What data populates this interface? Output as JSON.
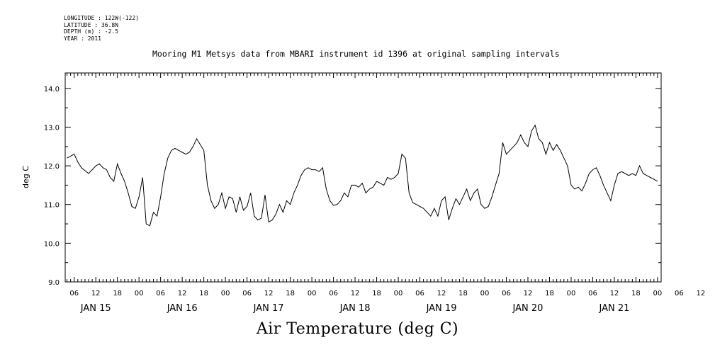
{
  "header": {
    "longitude": "LONGITUDE : 122W(-122)",
    "latitude": "LATITUDE : 36.8N",
    "depth": "DEPTH (m) : -2.5",
    "year": "YEAR : 2011"
  },
  "chart_data": {
    "type": "line",
    "title": "Mooring M1 Metsys data from MBARI instrument id 1396 at original sampling intervals",
    "xlabel": "Air Temperature (deg C)",
    "ylabel": "deg C",
    "ylim": [
      9.0,
      14.4
    ],
    "y_ticks": [
      "9.0",
      "10.0",
      "11.0",
      "12.0",
      "13.0",
      "14.0"
    ],
    "x_unit": "hours since 2011-01-14 00:00",
    "xlim": [
      27.5,
      193
    ],
    "hour_tick_labels": [
      "06",
      "12",
      "18",
      "00",
      "06",
      "12",
      "18",
      "00",
      "06",
      "12",
      "18",
      "00",
      "06",
      "12",
      "18",
      "00",
      "06",
      "12",
      "18",
      "00",
      "06",
      "12",
      "18",
      "00",
      "06",
      "12",
      "18",
      "00",
      "06",
      "12",
      "18",
      "00"
    ],
    "day_labels": [
      "JAN 15",
      "JAN 16",
      "JAN 17",
      "JAN 18",
      "JAN 19",
      "JAN 20",
      "JAN 21"
    ],
    "series": [
      {
        "x": [
          28,
          30,
          31,
          32,
          34,
          35,
          36,
          37,
          38,
          39,
          40,
          41,
          42,
          43,
          44,
          45,
          46,
          47,
          48,
          49,
          50,
          51,
          52,
          53,
          54,
          55,
          56,
          57,
          58,
          59,
          60,
          61,
          62,
          63,
          64,
          65,
          66,
          67,
          68,
          69,
          70,
          71,
          72,
          73,
          74,
          75,
          76,
          77,
          78,
          79,
          80,
          81,
          82,
          83,
          84,
          85,
          86,
          87,
          88,
          89,
          90,
          91,
          92,
          93,
          94,
          95,
          96,
          97,
          98,
          99,
          100,
          101,
          102,
          103,
          104,
          105,
          106,
          107,
          108,
          109,
          110,
          111,
          112,
          113,
          114,
          115,
          116,
          117,
          118,
          119,
          120,
          121,
          122,
          123,
          124,
          125,
          126,
          127,
          128,
          129,
          130,
          131,
          132,
          133,
          134,
          135,
          136,
          137,
          138,
          139,
          140,
          141,
          142,
          143,
          144,
          145,
          146,
          147,
          148,
          149,
          150,
          151,
          152,
          153,
          154,
          155,
          156,
          157,
          158,
          159,
          160,
          161,
          162,
          163,
          164,
          165,
          166,
          167,
          168,
          169,
          170,
          171,
          172,
          173,
          174,
          175,
          176,
          177,
          178,
          179,
          180,
          181,
          182,
          183,
          184,
          185,
          186,
          187,
          188,
          189,
          190,
          191,
          192
        ],
        "y": [
          12.2,
          12.3,
          12.1,
          11.95,
          11.8,
          11.9,
          12.0,
          12.05,
          11.95,
          11.9,
          11.7,
          11.6,
          12.05,
          11.8,
          11.6,
          11.3,
          10.95,
          10.9,
          11.2,
          11.7,
          10.5,
          10.45,
          10.8,
          10.7,
          11.2,
          11.8,
          12.2,
          12.4,
          12.45,
          12.4,
          12.35,
          12.3,
          12.35,
          12.5,
          12.7,
          12.55,
          12.4,
          11.5,
          11.1,
          10.9,
          11.0,
          11.3,
          10.9,
          11.2,
          11.15,
          10.8,
          11.2,
          10.85,
          10.95,
          11.3,
          10.7,
          10.6,
          10.65,
          11.25,
          10.55,
          10.6,
          10.75,
          11.0,
          10.8,
          11.1,
          11.0,
          11.3,
          11.5,
          11.75,
          11.9,
          11.95,
          11.9,
          11.9,
          11.85,
          11.95,
          11.4,
          11.1,
          10.98,
          11.0,
          11.1,
          11.3,
          11.2,
          11.5,
          11.5,
          11.45,
          11.55,
          11.3,
          11.4,
          11.45,
          11.6,
          11.55,
          11.5,
          11.7,
          11.65,
          11.7,
          11.8,
          12.3,
          12.2,
          11.3,
          11.05,
          11.0,
          10.95,
          10.9,
          10.8,
          10.7,
          10.9,
          10.7,
          11.1,
          11.2,
          10.6,
          10.9,
          11.15,
          11.0,
          11.2,
          11.4,
          11.1,
          11.3,
          11.4,
          11.0,
          10.9,
          10.95,
          11.2,
          11.5,
          11.8,
          12.6,
          12.3,
          12.4,
          12.5,
          12.6,
          12.8,
          12.6,
          12.5,
          12.9,
          13.05,
          12.7,
          12.6,
          12.3,
          12.6,
          12.4,
          12.55,
          12.4,
          12.2,
          12.0,
          11.5,
          11.4,
          11.45,
          11.35,
          11.55,
          11.8,
          11.9,
          11.95,
          11.75,
          11.5,
          11.3,
          11.1,
          11.5,
          11.8,
          11.85,
          11.8,
          11.75,
          11.8,
          11.75,
          12.0,
          11.8,
          11.75,
          11.7,
          11.65,
          11.6
        ]
      }
    ],
    "line_color": "#000000",
    "grid": false
  }
}
